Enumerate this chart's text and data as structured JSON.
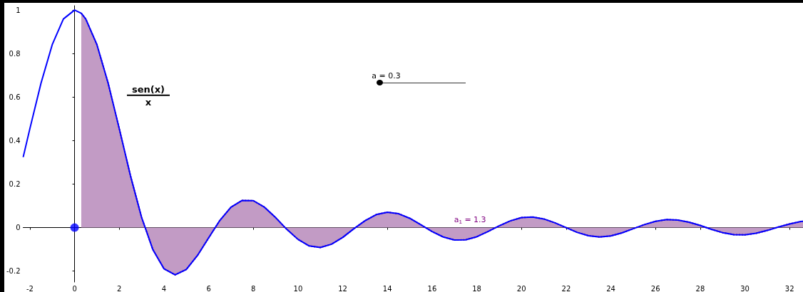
{
  "chart_data": {
    "type": "line",
    "x": [
      -2.3,
      -2,
      -1.5,
      -1,
      -0.5,
      0,
      0.3,
      0.5,
      1,
      1.5,
      2,
      2.5,
      3,
      3.5,
      4,
      4.5,
      5,
      5.5,
      6,
      6.5,
      7,
      7.5,
      8,
      8.5,
      9,
      9.5,
      10,
      10.5,
      11,
      11.5,
      12,
      12.5,
      13,
      13.5,
      14,
      14.5,
      15,
      15.5,
      16,
      16.5,
      17,
      17.5,
      18,
      18.5,
      19,
      19.5,
      20,
      20.5,
      21,
      21.5,
      22,
      22.5,
      23,
      23.5,
      24,
      24.5,
      25,
      25.5,
      26,
      26.5,
      27,
      27.5,
      28,
      28.5,
      29,
      29.5,
      30,
      30.5,
      31,
      31.5,
      32,
      32.5,
      32.6
    ],
    "series": [
      {
        "type": "area",
        "color": "#c29bc5",
        "line_style": "dotted",
        "x": [
          0.3,
          0.5,
          1,
          1.5,
          2,
          2.5,
          3,
          3.5,
          4,
          4.5,
          5,
          5.5,
          6,
          6.5,
          7,
          7.5,
          8,
          8.5,
          9,
          9.5,
          10,
          10.5,
          11,
          11.5,
          12,
          12.5,
          13,
          13.5,
          14,
          14.5,
          15,
          15.5,
          16,
          16.5,
          17,
          17.5,
          18,
          18.5,
          19,
          19.5,
          20,
          20.5,
          21,
          21.5,
          22,
          22.5,
          23,
          23.5,
          24,
          24.5,
          25,
          25.5,
          26,
          26.5,
          27,
          27.5,
          28,
          28.5,
          29,
          29.5,
          30,
          30.5,
          31,
          31.5,
          32,
          32.5,
          32.6
        ],
        "values": [
          0.985,
          0.959,
          0.841,
          0.665,
          0.455,
          0.239,
          0.047,
          -0.1,
          -0.189,
          -0.217,
          -0.192,
          -0.128,
          -0.047,
          0.033,
          0.094,
          0.125,
          0.124,
          0.094,
          0.046,
          -0.008,
          -0.054,
          -0.084,
          -0.091,
          -0.076,
          -0.045,
          -0.005,
          0.032,
          0.06,
          0.071,
          0.064,
          0.043,
          0.013,
          -0.018,
          -0.043,
          -0.057,
          -0.056,
          -0.042,
          -0.018,
          0.008,
          0.031,
          0.046,
          0.049,
          0.04,
          0.022,
          0,
          -0.022,
          -0.037,
          -0.043,
          -0.038,
          -0.024,
          -0.005,
          0.014,
          0.029,
          0.037,
          0.035,
          0.025,
          0.01,
          -0.008,
          -0.023,
          -0.032,
          -0.033,
          -0.026,
          -0.013,
          0.003,
          0.017,
          0.028,
          0.029
        ]
      },
      {
        "color": "#0000ff",
        "line_style": "solid",
        "values": [
          0.324,
          0.455,
          0.665,
          0.841,
          0.959,
          1,
          0.985,
          0.959,
          0.841,
          0.665,
          0.455,
          0.239,
          0.047,
          -0.1,
          -0.189,
          -0.217,
          -0.192,
          -0.128,
          -0.047,
          0.033,
          0.094,
          0.125,
          0.124,
          0.094,
          0.046,
          -0.008,
          -0.054,
          -0.084,
          -0.091,
          -0.076,
          -0.045,
          -0.005,
          0.032,
          0.06,
          0.071,
          0.064,
          0.043,
          0.013,
          -0.018,
          -0.043,
          -0.057,
          -0.056,
          -0.042,
          -0.018,
          0.008,
          0.031,
          0.046,
          0.049,
          0.04,
          0.022,
          0,
          -0.022,
          -0.037,
          -0.043,
          -0.038,
          -0.024,
          -0.005,
          0.014,
          0.029,
          0.037,
          0.035,
          0.025,
          0.01,
          -0.008,
          -0.023,
          -0.032,
          -0.033,
          -0.026,
          -0.013,
          0.003,
          0.017,
          0.028,
          0.029
        ]
      },
      {
        "type": "scatter",
        "color": "#0000ff",
        "marker": "circle",
        "x": [
          0
        ],
        "values": [
          0
        ]
      }
    ],
    "marker": "none",
    "xlim": [
      -2.3,
      32.6
    ],
    "xticks": [
      -2,
      0,
      2,
      4,
      6,
      8,
      10,
      12,
      14,
      16,
      18,
      20,
      22,
      24,
      26,
      28,
      30,
      32
    ],
    "ylim": [
      -0.25,
      1.02
    ],
    "yticks": [
      -0.2,
      0,
      0.2,
      0.4,
      0.6,
      0.8,
      1
    ],
    "annotations": [
      "sen(x)",
      "x",
      "a = 0.3",
      "a$_{1}$ = 1.3"
    ]
  }
}
